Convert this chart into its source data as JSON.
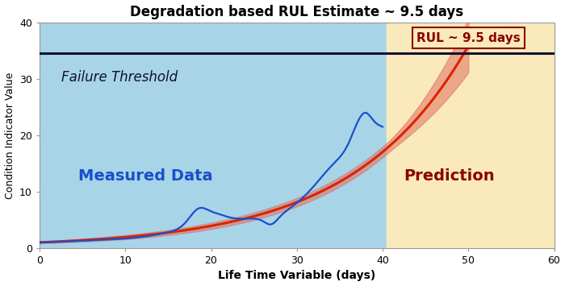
{
  "title": "Degradation based RUL Estimate ~ 9.5 days",
  "xlabel": "Life Time Variable (days)",
  "ylabel": "Condition Indicator Value",
  "xlim": [
    0,
    60
  ],
  "ylim": [
    0,
    40
  ],
  "failure_threshold": 34.5,
  "split_x": 40.5,
  "bg_blue": "#a8d4e8",
  "bg_yellow": "#faeabb",
  "threshold_color": "#111133",
  "measured_label": "Measured Data",
  "prediction_label": "Prediction",
  "failure_label": "Failure Threshold",
  "rul_label": "RUL ~ 9.5 days",
  "measured_color": "#1a4fcc",
  "fit_color": "#dd2200",
  "band_color": "#e07060",
  "rul_text_color": "#8b0000",
  "measured_fontsize": 14,
  "prediction_fontsize": 14,
  "failure_fontsize": 12,
  "rul_fontsize": 11
}
